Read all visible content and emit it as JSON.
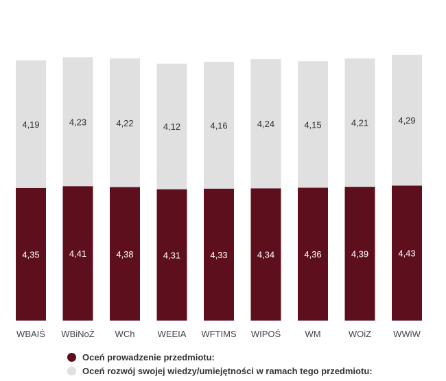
{
  "chart_data": {
    "type": "bar",
    "stacked": true,
    "categories": [
      "WBAIŚ",
      "WBiNoŻ",
      "WCh",
      "WEEIA",
      "WFTIMS",
      "WIPOŚ",
      "WM",
      "WOiZ",
      "WWiW"
    ],
    "series": [
      {
        "name": "Oceń prowadzenie przedmiotu:",
        "color": "#5e0f1e",
        "label_color": "#ffffff",
        "values": [
          4.35,
          4.41,
          4.38,
          4.31,
          4.33,
          4.34,
          4.36,
          4.39,
          4.43
        ],
        "labels": [
          "4,35",
          "4,41",
          "4,38",
          "4,31",
          "4,33",
          "4,34",
          "4,36",
          "4,39",
          "4,43"
        ]
      },
      {
        "name": "Oceń rozwój swojej wiedzy/umiejętności w ramach tego przedmiotu:",
        "color": "#e0e0e0",
        "label_color": "#333333",
        "values": [
          4.19,
          4.23,
          4.22,
          4.12,
          4.16,
          4.24,
          4.15,
          4.21,
          4.29
        ],
        "labels": [
          "4,19",
          "4,23",
          "4,22",
          "4,12",
          "4,16",
          "4,24",
          "4,15",
          "4,21",
          "4,29"
        ]
      }
    ],
    "ylim": [
      0,
      9
    ],
    "grid": false,
    "legend_position": "bottom"
  }
}
